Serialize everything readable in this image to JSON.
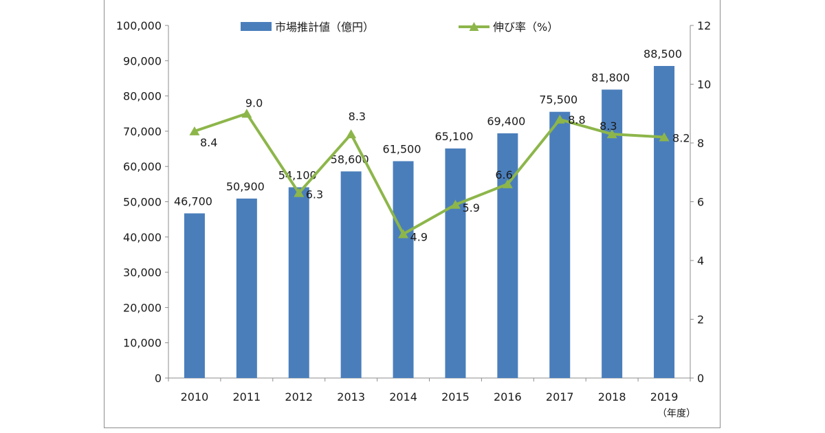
{
  "chart_data": {
    "type": "bar+line",
    "categories": [
      "2010",
      "2011",
      "2012",
      "2013",
      "2014",
      "2015",
      "2016",
      "2017",
      "2018",
      "2019"
    ],
    "series": [
      {
        "name": "市場推計値（億円）",
        "type": "bar",
        "axis": "left",
        "color": "#4a7ebb",
        "values": [
          46700,
          50900,
          54100,
          58600,
          61500,
          65100,
          69400,
          75500,
          81800,
          88500
        ],
        "labels": [
          "46,700",
          "50,900",
          "54,100",
          "58,600",
          "61,500",
          "65,100",
          "69,400",
          "75,500",
          "81,800",
          "88,500"
        ]
      },
      {
        "name": "伸び率（%）",
        "type": "line",
        "axis": "right",
        "color": "#8db64a",
        "marker": "triangle",
        "values": [
          8.4,
          9.0,
          6.3,
          8.3,
          4.9,
          5.9,
          6.6,
          8.8,
          8.3,
          8.2
        ],
        "labels": [
          "8.4",
          "9.0",
          "6.3",
          "8.3",
          "4.9",
          "5.9",
          "6.6",
          "8.8",
          "8.3",
          "8.2"
        ]
      }
    ],
    "y_left": {
      "range": [
        0,
        100000
      ],
      "ticks": [
        "0",
        "10,000",
        "20,000",
        "30,000",
        "40,000",
        "50,000",
        "60,000",
        "70,000",
        "80,000",
        "90,000",
        "100,000"
      ]
    },
    "y_right": {
      "range": [
        0,
        12
      ],
      "ticks": [
        "0",
        "2",
        "4",
        "6",
        "8",
        "10",
        "12"
      ]
    },
    "x_unit_label": "（年度）",
    "legend_position": "top",
    "grid": false
  }
}
